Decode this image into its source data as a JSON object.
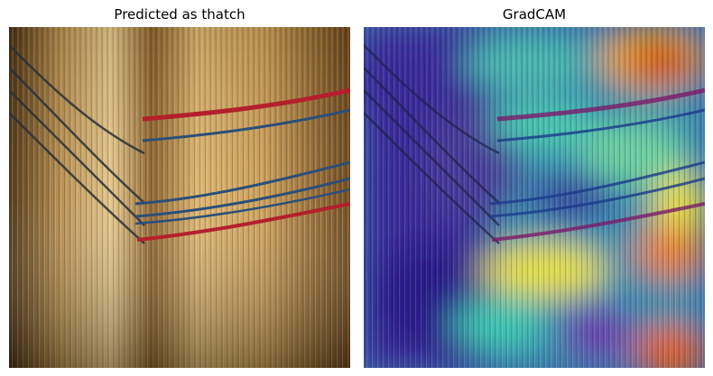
{
  "figure": {
    "panels": [
      {
        "title": "Predicted as thatch",
        "image": "thatch-photo"
      },
      {
        "title": "GradCAM",
        "image": "gradcam-heatmap-overlay"
      }
    ]
  },
  "colors": {
    "straw_light": "#d9b26a",
    "straw_dark": "#5a3a14",
    "cord_red": "#b3202c",
    "cord_blue": "#2a4f7a",
    "heat_low": "#2a1a8c",
    "heat_mid": "#3cc8b4",
    "heat_high": "#e8e040",
    "heat_peak": "#c82010"
  }
}
